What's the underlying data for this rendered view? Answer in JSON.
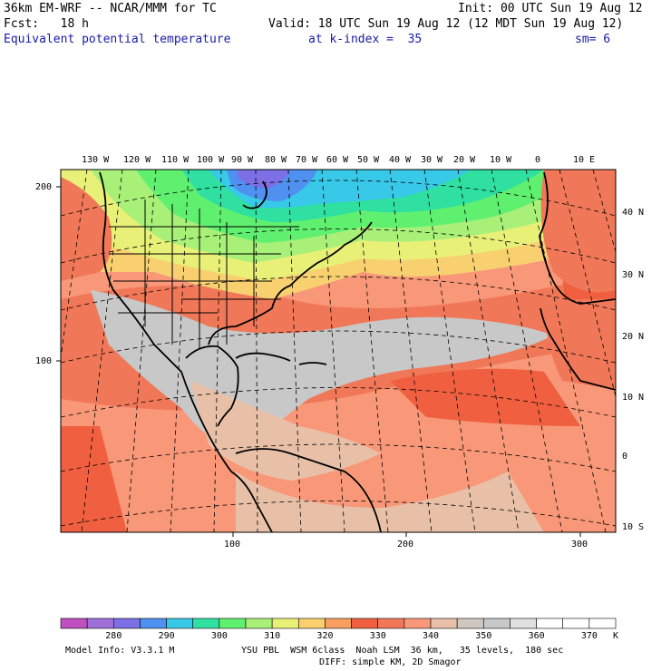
{
  "header": {
    "model_line": "36km EM-WRF -- NCAR/MMM for TC",
    "init_line": "Init: 00 UTC Sun 19 Aug 12",
    "fcst_line": "Fcst:   18 h",
    "valid_line": "Valid: 18 UTC Sun 19 Aug 12 (12 MDT Sun 19 Aug 12)",
    "field_title": "Equivalent potential temperature",
    "level_text": "at k-index =  35",
    "smooth_text": "sm= 6"
  },
  "map": {
    "lon_labels": [
      "130 W",
      "120 W",
      "110 W",
      "100 W",
      "90 W",
      "80 W",
      "70 W",
      "60 W",
      "50 W",
      "40 W",
      "30 W",
      "20 W",
      "10 W",
      "0",
      "10 E"
    ],
    "lat_labels": [
      "40 N",
      "30 N",
      "20 N",
      "10 N",
      "0",
      "10 S"
    ],
    "grid_y_labels": [
      "200",
      "100"
    ],
    "grid_x_labels": [
      "100",
      "200",
      "300"
    ],
    "units_symbol": "K"
  },
  "colorbar": {
    "labels": [
      "280",
      "290",
      "300",
      "310",
      "320",
      "330",
      "340",
      "350",
      "360",
      "370"
    ],
    "colors": [
      "#c04fc0",
      "#a070d8",
      "#7c70e4",
      "#5090f0",
      "#38c8e8",
      "#30e0a0",
      "#60f070",
      "#a8f078",
      "#e8f078",
      "#f8d070",
      "#f8a060",
      "#f06040",
      "#f07858",
      "#f89878",
      "#e8c0a8",
      "#d0c8c0",
      "#c8c8c8",
      "#e0e0e0",
      "#ffffff",
      "#ffffff",
      "#ffffff"
    ]
  },
  "footer": {
    "model_info": "Model Info: V3.3.1 M",
    "physics": "YSU PBL  WSM 6class  Noah LSM  36 km,   35 levels,  180 sec",
    "diffusion": "DIFF: simple KM, 2D Smagor"
  }
}
